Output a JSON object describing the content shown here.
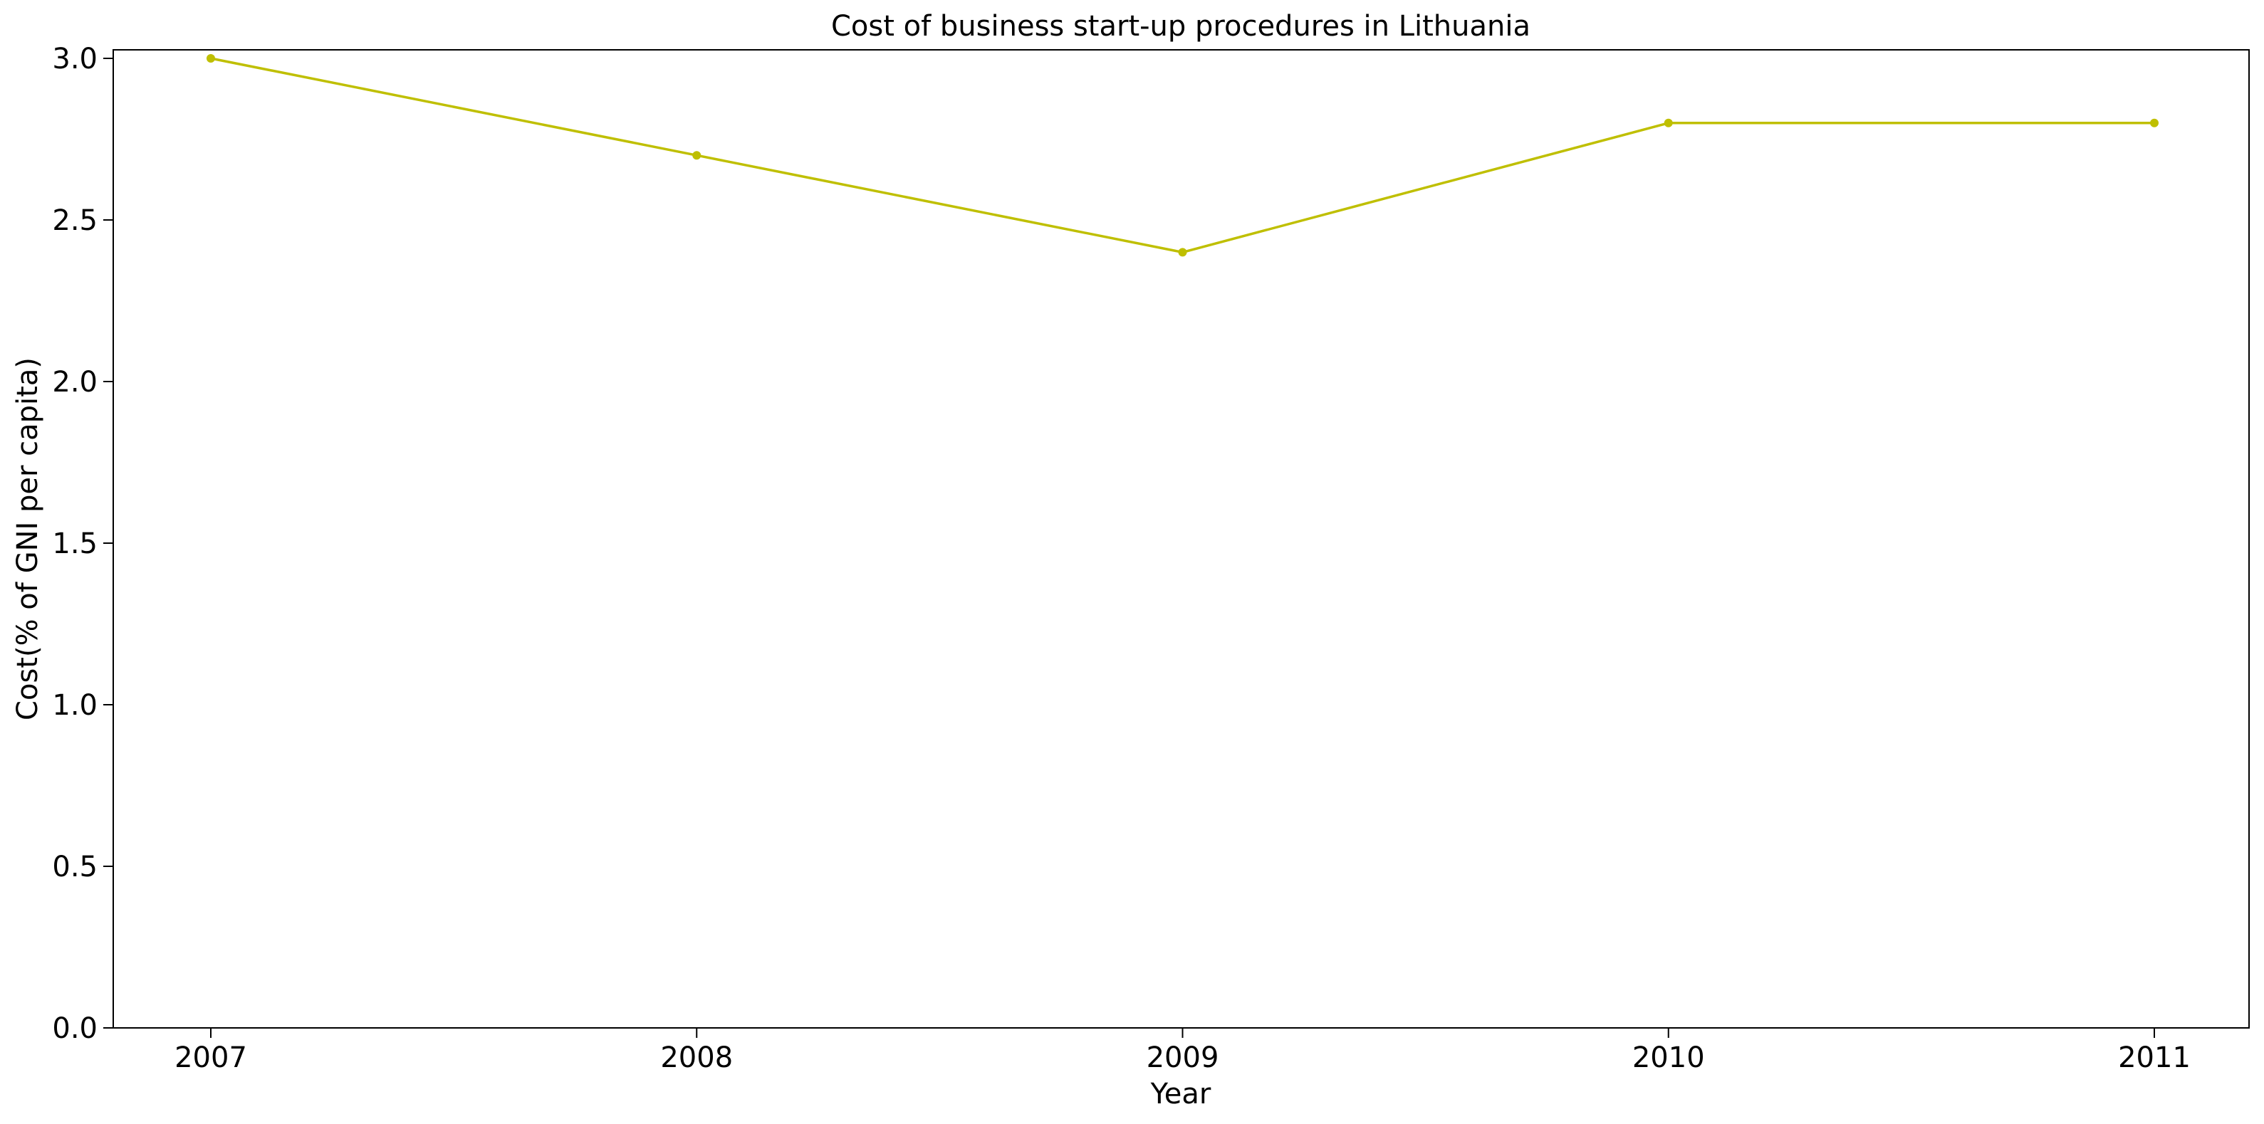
{
  "chart_data": {
    "type": "line",
    "title": "Cost of business start-up procedures in Lithuania",
    "xlabel": "Year",
    "ylabel": "Cost(% of GNI per capita)",
    "x": [
      "2007",
      "2008",
      "2009",
      "2010",
      "2011"
    ],
    "series": [
      {
        "values": [
          3.0,
          2.7,
          2.4,
          2.8,
          2.8
        ],
        "color": "#bfbf00",
        "marker": "circle"
      }
    ],
    "ylim": [
      0,
      3.03
    ],
    "yticks": [
      "0.0",
      "0.5",
      "1.0",
      "1.5",
      "2.0",
      "2.5",
      "3.0"
    ],
    "grid": false,
    "legend": "none"
  }
}
